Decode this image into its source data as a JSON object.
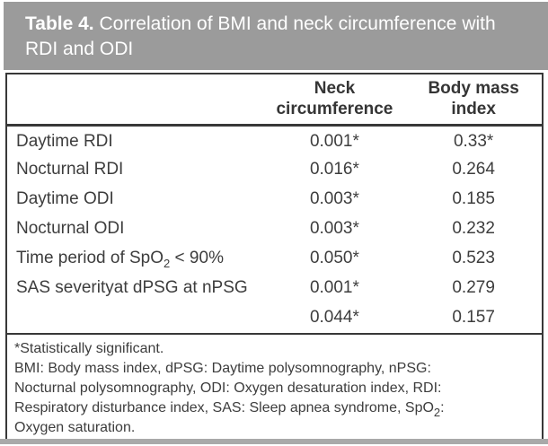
{
  "caption": {
    "label": "Table 4.",
    "text_line1": " Correlation of BMI and neck circumference with",
    "text_line2": "RDI and ODI"
  },
  "table": {
    "columns": [
      "Neck circumference",
      "Body mass index"
    ],
    "rows": [
      {
        "label": "Daytime RDI",
        "label_sub": "",
        "label_post": "",
        "neck": "0.001*",
        "bmi": "0.33*"
      },
      {
        "label": "Nocturnal RDI",
        "label_sub": "",
        "label_post": "",
        "neck": "0.016*",
        "bmi": "0.264"
      },
      {
        "label": "Daytime ODI",
        "label_sub": "",
        "label_post": "",
        "neck": "0.003*",
        "bmi": "0.185"
      },
      {
        "label": "Nocturnal ODI",
        "label_sub": "",
        "label_post": "",
        "neck": "0.003*",
        "bmi": "0.232"
      },
      {
        "label": "Time period of SpO",
        "label_sub": "2",
        "label_post": " < 90%",
        "neck": "0.050*",
        "bmi": "0.523"
      },
      {
        "label": "SAS severityat dPSG at nPSG",
        "label_sub": "",
        "label_post": "",
        "neck": "0.001*",
        "bmi": "0.279"
      },
      {
        "label": "",
        "label_sub": "",
        "label_post": "",
        "neck": "0.044*",
        "bmi": "0.157"
      }
    ]
  },
  "footnotes": {
    "line1": "*Statistically significant.",
    "line2": "BMI: Body mass index, dPSG: Daytime polysomnography, nPSG:",
    "line3": "Nocturnal polysomnography, ODI: Oxygen desaturation index, RDI:",
    "line4_pre": "Respiratory disturbance index, SAS: Sleep apnea syndrome, SpO",
    "line4_sub": "2",
    "line4_post": ":",
    "line5": "Oxygen saturation."
  },
  "colors": {
    "caption_background": "#9b9b9b",
    "caption_text": "#ffffff",
    "table_border": "#383838",
    "body_text": "#3d3d3d",
    "bottom_bar": "#a9a9a9"
  }
}
